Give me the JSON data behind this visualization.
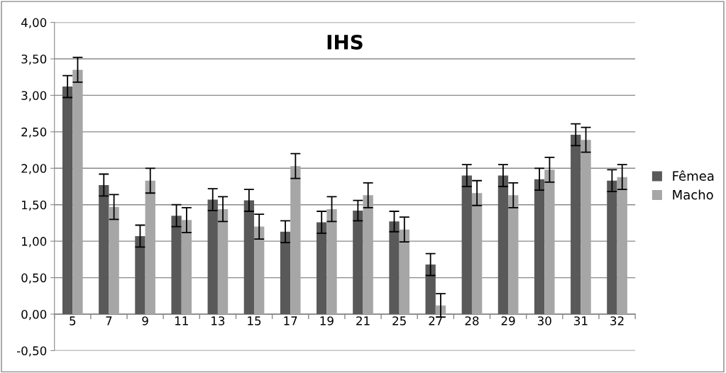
{
  "chart_data": {
    "type": "bar",
    "title": "IHS",
    "categories": [
      "5",
      "7",
      "9",
      "11",
      "13",
      "15",
      "17",
      "19",
      "21",
      "25",
      "27",
      "28",
      "29",
      "30",
      "31",
      "32"
    ],
    "series": [
      {
        "name": "Fêmea",
        "color": "#595959",
        "values": [
          3.12,
          1.77,
          1.07,
          1.35,
          1.57,
          1.56,
          1.13,
          1.26,
          1.42,
          1.27,
          0.68,
          1.9,
          1.9,
          1.85,
          2.46,
          1.83
        ],
        "errors": [
          0.15,
          0.15,
          0.15,
          0.15,
          0.15,
          0.15,
          0.15,
          0.15,
          0.14,
          0.14,
          0.15,
          0.15,
          0.15,
          0.15,
          0.15,
          0.15
        ]
      },
      {
        "name": "Macho",
        "color": "#a6a6a6",
        "values": [
          3.35,
          1.47,
          1.83,
          1.29,
          1.44,
          1.2,
          2.03,
          1.44,
          1.63,
          1.16,
          0.12,
          1.66,
          1.63,
          1.98,
          2.39,
          1.88
        ],
        "errors": [
          0.17,
          0.17,
          0.17,
          0.17,
          0.17,
          0.17,
          0.17,
          0.17,
          0.17,
          0.17,
          0.16,
          0.17,
          0.17,
          0.17,
          0.17,
          0.17
        ]
      }
    ],
    "ylim": [
      -0.5,
      4.0
    ],
    "yticks": [
      {
        "value": -0.5,
        "label": "-0,50"
      },
      {
        "value": 0,
        "label": "0,00"
      },
      {
        "value": 0.5,
        "label": "0,50"
      },
      {
        "value": 1.0,
        "label": "1,00"
      },
      {
        "value": 1.5,
        "label": "1,50"
      },
      {
        "value": 2.0,
        "label": "2,00"
      },
      {
        "value": 2.5,
        "label": "2,50"
      },
      {
        "value": 3.0,
        "label": "3,00"
      },
      {
        "value": 3.5,
        "label": "3,50"
      },
      {
        "value": 4.0,
        "label": "4,00"
      }
    ],
    "grid": "y",
    "legend": "right"
  }
}
